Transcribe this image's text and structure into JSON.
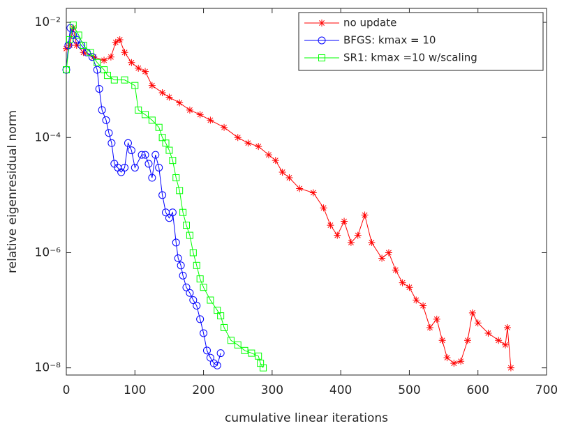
{
  "chart_data": {
    "type": "line",
    "xlabel": "cumulative linear iterations",
    "ylabel": "relative eigenresidual norm",
    "xlim": [
      0,
      700
    ],
    "xticks": [
      0,
      100,
      200,
      300,
      400,
      500,
      600,
      700
    ],
    "ylim": [
      7.5e-09,
      0.0175
    ],
    "yticks": [
      {
        "value": 1e-08,
        "label": "10⁻⁸"
      },
      {
        "value": 1e-06,
        "label": "10⁻⁶"
      },
      {
        "value": 0.0001,
        "label": "10⁻⁴"
      },
      {
        "value": 0.01,
        "label": "10⁻²"
      }
    ],
    "log_y": true,
    "legend": "upper right",
    "series": [
      {
        "name": "no update",
        "color": "#ff0000",
        "marker": "star",
        "x": [
          0,
          5,
          10,
          15,
          25,
          40,
          55,
          65,
          72,
          78,
          85,
          95,
          105,
          115,
          125,
          140,
          150,
          165,
          180,
          195,
          210,
          230,
          250,
          265,
          280,
          295,
          305,
          315,
          325,
          340,
          360,
          375,
          385,
          395,
          405,
          415,
          425,
          435,
          445,
          460,
          470,
          480,
          490,
          500,
          510,
          520,
          530,
          540,
          548,
          555,
          565,
          575,
          585,
          592,
          600,
          615,
          630,
          640,
          643,
          648
        ],
        "values": [
          0.0035,
          0.004,
          0.008,
          0.004,
          0.003,
          0.0025,
          0.0022,
          0.0025,
          0.0045,
          0.005,
          0.003,
          0.002,
          0.0016,
          0.0014,
          0.0008,
          0.0006,
          0.0005,
          0.0004,
          0.0003,
          0.00025,
          0.0002,
          0.00015,
          0.0001,
          8e-05,
          7e-05,
          5e-05,
          4e-05,
          2.5e-05,
          2e-05,
          1.3e-05,
          1.1e-05,
          6e-06,
          3e-06,
          2e-06,
          3.5e-06,
          1.5e-06,
          2e-06,
          4.5e-06,
          1.5e-06,
          8e-07,
          1e-06,
          5e-07,
          3e-07,
          2.5e-07,
          1.5e-07,
          1.2e-07,
          5e-08,
          7e-08,
          3e-08,
          1.5e-08,
          1.2e-08,
          1.3e-08,
          3e-08,
          9e-08,
          6e-08,
          4e-08,
          3e-08,
          2.5e-08,
          5e-08,
          1e-08
        ]
      },
      {
        "name": "BFGS: kmax = 10",
        "color": "#0000ff",
        "marker": "circle",
        "x": [
          0,
          3,
          6,
          10,
          15,
          22,
          30,
          38,
          45,
          48,
          52,
          58,
          62,
          66,
          70,
          75,
          80,
          85,
          90,
          95,
          100,
          110,
          115,
          120,
          125,
          130,
          135,
          140,
          145,
          150,
          155,
          160,
          163,
          167,
          170,
          175,
          180,
          185,
          190,
          195,
          200,
          205,
          210,
          215,
          220,
          225
        ],
        "values": [
          0.0015,
          0.004,
          0.008,
          0.006,
          0.005,
          0.004,
          0.003,
          0.0025,
          0.0015,
          0.0007,
          0.0003,
          0.0002,
          0.00012,
          8e-05,
          3.5e-05,
          3e-05,
          2.5e-05,
          3e-05,
          8e-05,
          6e-05,
          3e-05,
          5e-05,
          5e-05,
          3.5e-05,
          2e-05,
          5e-05,
          3e-05,
          1e-05,
          5e-06,
          4e-06,
          5e-06,
          1.5e-06,
          8e-07,
          6e-07,
          4e-07,
          2.5e-07,
          2e-07,
          1.5e-07,
          1.2e-07,
          7e-08,
          4e-08,
          2e-08,
          1.5e-08,
          1.2e-08,
          1.1e-08,
          1.8e-08
        ]
      },
      {
        "name": "SR1: kmax =10 w/scaling",
        "color": "#00ff00",
        "marker": "square",
        "x": [
          0,
          5,
          10,
          18,
          25,
          35,
          45,
          55,
          60,
          70,
          85,
          100,
          105,
          115,
          125,
          135,
          140,
          145,
          150,
          155,
          160,
          165,
          170,
          175,
          180,
          185,
          190,
          195,
          200,
          210,
          220,
          225,
          230,
          240,
          250,
          260,
          270,
          280,
          283,
          287
        ],
        "values": [
          0.0015,
          0.005,
          0.009,
          0.006,
          0.004,
          0.003,
          0.002,
          0.0015,
          0.0012,
          0.001,
          0.001,
          0.0008,
          0.0003,
          0.00025,
          0.0002,
          0.00015,
          0.0001,
          8e-05,
          6e-05,
          4e-05,
          2e-05,
          1.2e-05,
          5e-06,
          3e-06,
          2e-06,
          1e-06,
          6e-07,
          3.5e-07,
          2.5e-07,
          1.5e-07,
          1e-07,
          8e-08,
          5e-08,
          3e-08,
          2.5e-08,
          2e-08,
          1.8e-08,
          1.6e-08,
          1.2e-08,
          1e-08
        ]
      }
    ]
  }
}
